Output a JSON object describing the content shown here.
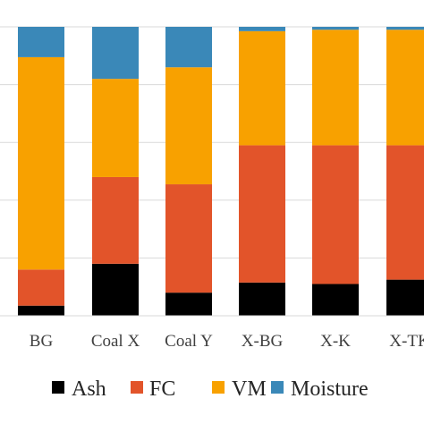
{
  "chart_data": {
    "type": "bar",
    "stacked": true,
    "normalized_to_percent": true,
    "categories": [
      "BG",
      "Coal X",
      "Coal Y",
      "X-BG",
      "X-K",
      "X-TK"
    ],
    "series": [
      {
        "name": "Ash",
        "color": "#000000",
        "values": [
          3.5,
          18.0,
          8.0,
          11.5,
          11.0,
          12.5
        ]
      },
      {
        "name": "FC",
        "color": "#e2542a",
        "values": [
          12.5,
          30.0,
          37.5,
          47.5,
          48.0,
          46.5
        ]
      },
      {
        "name": "VM",
        "color": "#f8a100",
        "values": [
          73.5,
          34.0,
          40.5,
          39.5,
          40.0,
          40.0
        ]
      },
      {
        "name": "Moisture",
        "color": "#3a88b8",
        "values": [
          10.5,
          18.0,
          14.0,
          1.5,
          1.0,
          1.0
        ]
      }
    ],
    "ylim": [
      0,
      100
    ],
    "ytick_step": 20,
    "grid": true,
    "legend_position": "bottom",
    "title": "",
    "xlabel": "",
    "ylabel": ""
  }
}
